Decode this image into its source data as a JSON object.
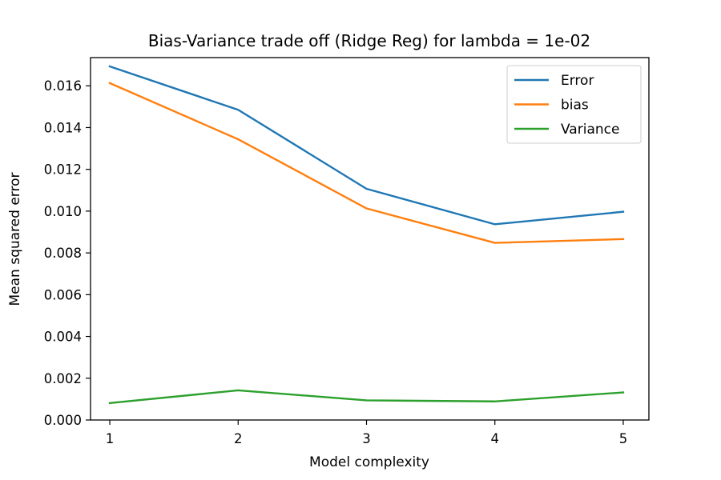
{
  "chart_data": {
    "type": "line",
    "title": "Bias-Variance trade off (Ridge Reg) for lambda = 1e-02",
    "xlabel": "Model complexity",
    "ylabel": "Mean squared error",
    "x": [
      1,
      2,
      3,
      4,
      5
    ],
    "xticks": [
      "1",
      "2",
      "3",
      "4",
      "5"
    ],
    "xlim": [
      0.85,
      5.2
    ],
    "ylim": [
      0.0,
      0.01735
    ],
    "yticks": [
      "0.000",
      "0.002",
      "0.004",
      "0.006",
      "0.008",
      "0.010",
      "0.012",
      "0.014",
      "0.016"
    ],
    "ytick_values": [
      0.0,
      0.002,
      0.004,
      0.006,
      0.008,
      0.01,
      0.012,
      0.014,
      0.016
    ],
    "grid": false,
    "legend_position": "top-right",
    "series": [
      {
        "name": "Error",
        "color": "#1f77b4",
        "values": [
          0.01693,
          0.01485,
          0.01107,
          0.00937,
          0.00997
        ]
      },
      {
        "name": "bias",
        "color": "#ff7f0e",
        "values": [
          0.01613,
          0.01344,
          0.01013,
          0.00848,
          0.00866
        ]
      },
      {
        "name": "Variance",
        "color": "#2ca02c",
        "values": [
          0.00081,
          0.00142,
          0.00094,
          0.00089,
          0.00132
        ]
      }
    ]
  }
}
